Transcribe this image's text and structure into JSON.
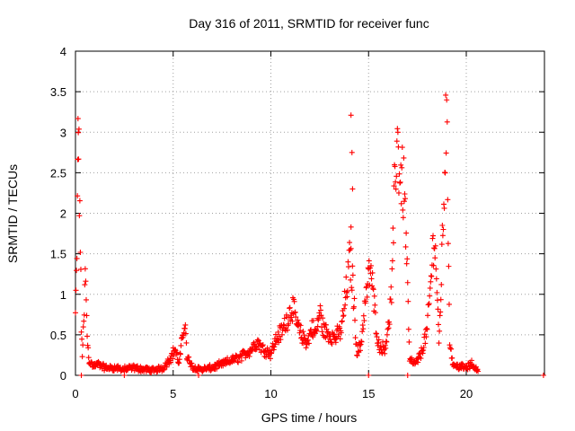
{
  "chart_data": {
    "type": "scatter",
    "title": "Day 316 of 2011, SRMTID for receiver func",
    "xlabel": "GPS time / hours",
    "ylabel": "SRMTID / TECUs",
    "xlim": [
      0,
      24
    ],
    "ylim": [
      0,
      4
    ],
    "xticks": [
      0,
      5,
      10,
      15,
      20
    ],
    "xtick_labels": [
      "0",
      "5",
      "10",
      "15",
      "20"
    ],
    "yticks": [
      0,
      0.5,
      1,
      1.5,
      2,
      2.5,
      3,
      3.5,
      4
    ],
    "ytick_labels": [
      "0",
      "0.5",
      "1",
      "1.5",
      "2",
      "2.5",
      "3",
      "3.5",
      "4"
    ],
    "grid": true,
    "marker": "+",
    "marker_color": "#ff0000",
    "series": [
      {
        "name": "SRMTID",
        "anchors": [
          [
            0.0,
            0.8
          ],
          [
            0.05,
            1.3
          ],
          [
            0.1,
            2.2
          ],
          [
            0.13,
            3.1
          ],
          [
            0.16,
            3.22
          ],
          [
            0.2,
            2.5
          ],
          [
            0.25,
            1.8
          ],
          [
            0.3,
            0.6
          ],
          [
            0.35,
            0.3
          ],
          [
            0.45,
            0.8
          ],
          [
            0.5,
            1.38
          ],
          [
            0.55,
            1.0
          ],
          [
            0.6,
            0.5
          ],
          [
            0.7,
            0.2
          ],
          [
            0.9,
            0.12
          ],
          [
            1.2,
            0.15
          ],
          [
            1.5,
            0.1
          ],
          [
            2.0,
            0.1
          ],
          [
            2.5,
            0.08
          ],
          [
            3.0,
            0.1
          ],
          [
            3.5,
            0.08
          ],
          [
            4.0,
            0.07
          ],
          [
            4.5,
            0.1
          ],
          [
            4.9,
            0.25
          ],
          [
            5.1,
            0.35
          ],
          [
            5.3,
            0.15
          ],
          [
            5.5,
            0.55
          ],
          [
            5.6,
            0.75
          ],
          [
            5.7,
            0.25
          ],
          [
            6.0,
            0.1
          ],
          [
            6.5,
            0.08
          ],
          [
            7.0,
            0.1
          ],
          [
            7.5,
            0.15
          ],
          [
            8.0,
            0.2
          ],
          [
            8.5,
            0.25
          ],
          [
            9.0,
            0.35
          ],
          [
            9.3,
            0.45
          ],
          [
            9.6,
            0.35
          ],
          [
            10.0,
            0.3
          ],
          [
            10.3,
            0.5
          ],
          [
            10.6,
            0.6
          ],
          [
            10.9,
            0.8
          ],
          [
            11.1,
            0.92
          ],
          [
            11.3,
            0.7
          ],
          [
            11.6,
            0.5
          ],
          [
            11.9,
            0.45
          ],
          [
            12.1,
            0.65
          ],
          [
            12.3,
            0.55
          ],
          [
            12.5,
            0.85
          ],
          [
            12.7,
            0.6
          ],
          [
            13.0,
            0.55
          ],
          [
            13.3,
            0.5
          ],
          [
            13.6,
            0.6
          ],
          [
            13.9,
            1.2
          ],
          [
            14.05,
            1.58
          ],
          [
            14.2,
            1.2
          ],
          [
            14.4,
            0.3
          ],
          [
            14.6,
            0.4
          ],
          [
            14.8,
            0.9
          ],
          [
            15.0,
            1.3
          ],
          [
            15.1,
            1.45
          ],
          [
            15.3,
            0.9
          ],
          [
            15.5,
            0.4
          ],
          [
            15.8,
            0.35
          ],
          [
            16.0,
            0.6
          ],
          [
            16.2,
            1.2
          ],
          [
            16.35,
            2.6
          ],
          [
            16.45,
            3.2
          ],
          [
            16.6,
            2.7
          ],
          [
            16.8,
            2.5
          ],
          [
            16.9,
            2.0
          ],
          [
            17.1,
            0.2
          ],
          [
            17.4,
            0.15
          ],
          [
            17.7,
            0.3
          ],
          [
            18.0,
            0.6
          ],
          [
            18.2,
            1.3
          ],
          [
            18.35,
            1.95
          ],
          [
            18.5,
            1.2
          ],
          [
            18.6,
            0.4
          ],
          [
            18.75,
            1.5
          ],
          [
            18.9,
            2.8
          ],
          [
            18.97,
            3.52
          ],
          [
            19.05,
            2.5
          ],
          [
            19.15,
            0.5
          ],
          [
            19.3,
            0.15
          ],
          [
            19.6,
            0.12
          ],
          [
            20.0,
            0.1
          ],
          [
            20.3,
            0.15
          ],
          [
            20.6,
            0.05
          ]
        ],
        "isolated_points": [
          [
            14.1,
            3.21
          ],
          [
            14.15,
            2.75
          ],
          [
            14.18,
            2.3
          ],
          [
            14.1,
            1.83
          ]
        ],
        "zero_points": [
          [
            0.3,
            0.0
          ],
          [
            2.5,
            0.0
          ],
          [
            6.3,
            0.0
          ],
          [
            15.0,
            0.0
          ],
          [
            17.0,
            0.0
          ],
          [
            23.95,
            0.0
          ]
        ]
      }
    ]
  }
}
